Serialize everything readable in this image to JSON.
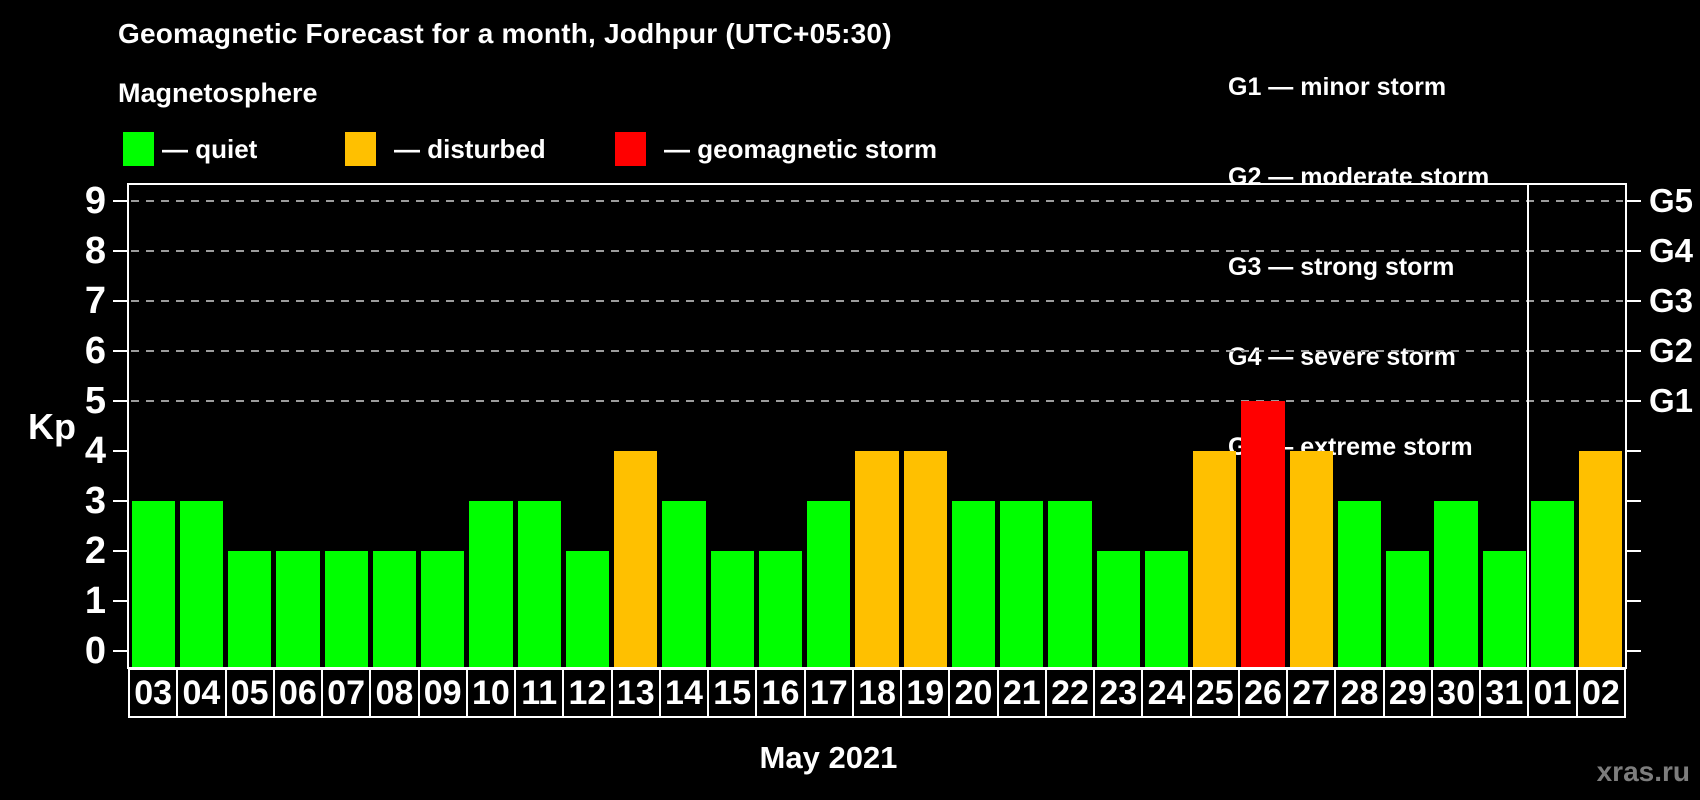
{
  "header": {
    "title": "Geomagnetic Forecast for a month, Jodhpur (UTC+05:30)",
    "subtitle": "Magnetosphere"
  },
  "legend": {
    "items": [
      {
        "label": "— quiet",
        "status": "quiet",
        "color": "#00ff00"
      },
      {
        "label": "— disturbed",
        "status": "disturbed",
        "color": "#ffc000"
      },
      {
        "label": "— geomagnetic storm",
        "status": "storm",
        "color": "#ff0000"
      }
    ]
  },
  "g_legend": {
    "lines": [
      "G1 — minor storm",
      "G2 — moderate storm",
      "G3 — strong storm",
      "G4 — severe storm",
      "G5 — extreme storm"
    ]
  },
  "status_colors": {
    "quiet": "#00ff00",
    "disturbed": "#ffc000",
    "storm": "#ff0000"
  },
  "chart_data": {
    "type": "bar",
    "title": "Geomagnetic Forecast for a month, Jodhpur (UTC+05:30)",
    "ylabel": "Kp",
    "xlabel": "May 2021",
    "ylim": [
      0,
      9.4
    ],
    "yticks": [
      0,
      1,
      2,
      3,
      4,
      5,
      6,
      7,
      8,
      9
    ],
    "gridlines_at": [
      5,
      6,
      7,
      8,
      9
    ],
    "grid_style": "dashed",
    "legend_position": "top-left",
    "right_axis": {
      "labels": [
        "G1",
        "G2",
        "G3",
        "G4",
        "G5"
      ],
      "values": [
        5,
        6,
        7,
        8,
        9
      ]
    },
    "categories": [
      "03",
      "04",
      "05",
      "06",
      "07",
      "08",
      "09",
      "10",
      "11",
      "12",
      "13",
      "14",
      "15",
      "16",
      "17",
      "18",
      "19",
      "20",
      "21",
      "22",
      "23",
      "24",
      "25",
      "26",
      "27",
      "28",
      "29",
      "30",
      "31",
      "01",
      "02"
    ],
    "values": [
      3,
      3,
      2,
      2,
      2,
      2,
      2,
      3,
      3,
      2,
      4,
      3,
      2,
      2,
      3,
      4,
      4,
      3,
      3,
      3,
      2,
      2,
      4,
      5,
      4,
      3,
      2,
      3,
      2,
      3,
      4
    ],
    "statuses": [
      "quiet",
      "quiet",
      "quiet",
      "quiet",
      "quiet",
      "quiet",
      "quiet",
      "quiet",
      "quiet",
      "quiet",
      "disturbed",
      "quiet",
      "quiet",
      "quiet",
      "quiet",
      "disturbed",
      "disturbed",
      "quiet",
      "quiet",
      "quiet",
      "quiet",
      "quiet",
      "disturbed",
      "storm",
      "disturbed",
      "quiet",
      "quiet",
      "quiet",
      "quiet",
      "quiet",
      "disturbed"
    ],
    "month_separator_after_index": 28
  },
  "footer": {
    "watermark": "xras.ru"
  }
}
